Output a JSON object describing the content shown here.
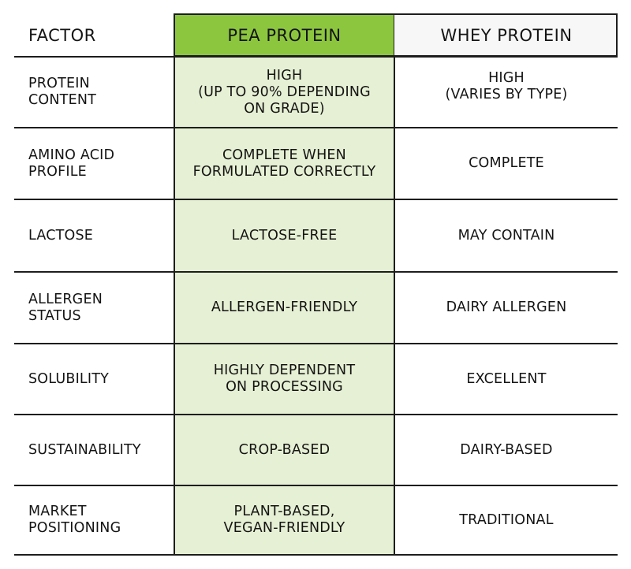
{
  "header": {
    "factor": "FACTOR",
    "pea": "PEA PROTEIN",
    "whey": "WHEY PROTEIN"
  },
  "colors": {
    "pea_header": "#8cc63f",
    "pea_column": "#e6f0d4",
    "whey_header": "#f7f7f7",
    "rule": "#1d1d1d"
  },
  "rows": [
    {
      "factor": "PROTEIN\nCONTENT",
      "pea": "HIGH\n(UP TO 90% DEPENDING\nON GRADE)",
      "whey": "HIGH\n(VARIES BY TYPE)"
    },
    {
      "factor": "AMINO ACID\nPROFILE",
      "pea": "COMPLETE WHEN\nFORMULATED CORRECTLY",
      "whey": "COMPLETE"
    },
    {
      "factor": "LACTOSE",
      "pea": "LACTOSE-FREE",
      "whey": "MAY CONTAIN"
    },
    {
      "factor": "ALLERGEN\nSTATUS",
      "pea": "ALLERGEN-FRIENDLY",
      "whey": "DAIRY ALLERGEN"
    },
    {
      "factor": "SOLUBILITY",
      "pea": "HIGHLY DEPENDENT\nON PROCESSING",
      "whey": "EXCELLENT"
    },
    {
      "factor": "SUSTAINABILITY",
      "pea": "CROP-BASED",
      "whey": "DAIRY-BASED"
    },
    {
      "factor": "MARKET\nPOSITIONING",
      "pea": "PLANT-BASED,\nVEGAN-FRIENDLY",
      "whey": "TRADITIONAL"
    }
  ]
}
